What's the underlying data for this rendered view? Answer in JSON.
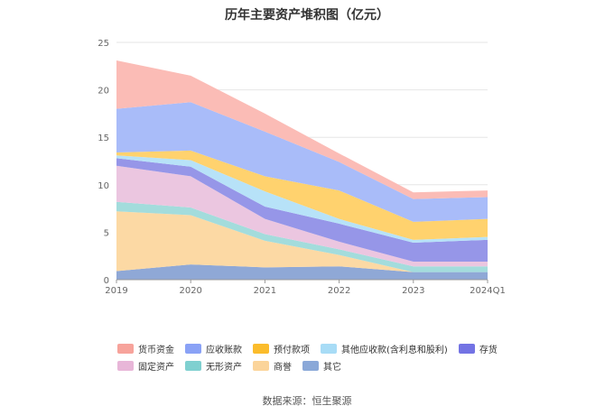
{
  "chart_data": {
    "type": "area",
    "stacked": true,
    "title": "历年主要资产堆积图（亿元）",
    "xlabel": "",
    "ylabel": "",
    "categories": [
      "2019",
      "2020",
      "2021",
      "2022",
      "2023",
      "2024Q1"
    ],
    "ylim": [
      0,
      25
    ],
    "yticks": [
      0,
      5,
      10,
      15,
      20,
      25
    ],
    "grid": true,
    "legend_position": "bottom",
    "series": [
      {
        "name": "其它",
        "color": "#8fa8d6",
        "values": [
          0.9,
          1.6,
          1.3,
          1.4,
          0.8,
          0.8
        ]
      },
      {
        "name": "商誉",
        "color": "#fcd9a4",
        "values": [
          6.3,
          5.2,
          2.8,
          1.2,
          0.0,
          0.0
        ]
      },
      {
        "name": "无形资产",
        "color": "#a3dcdc",
        "values": [
          1.0,
          0.8,
          0.7,
          0.6,
          0.6,
          0.6
        ]
      },
      {
        "name": "固定资产",
        "color": "#ebc6e0",
        "values": [
          3.8,
          3.3,
          1.6,
          0.8,
          0.5,
          0.5
        ]
      },
      {
        "name": "存货",
        "color": "#9696e8",
        "values": [
          0.8,
          1.0,
          1.3,
          1.9,
          2.0,
          2.3
        ]
      },
      {
        "name": "其他应收款(含利息和股利)",
        "color": "#b7e2f8",
        "values": [
          0.3,
          0.7,
          1.6,
          0.5,
          0.3,
          0.3
        ]
      },
      {
        "name": "预付款项",
        "color": "#ffd26e",
        "values": [
          0.3,
          1.0,
          1.6,
          3.0,
          1.9,
          1.9
        ]
      },
      {
        "name": "应收账款",
        "color": "#a9bcf9",
        "values": [
          4.6,
          5.1,
          4.7,
          3.0,
          2.4,
          2.3
        ]
      },
      {
        "name": "货币资金",
        "color": "#fbbcb6",
        "values": [
          5.1,
          2.8,
          1.9,
          0.9,
          0.7,
          0.7
        ]
      }
    ],
    "legend": {
      "rows": [
        [
          {
            "name": "货币资金",
            "color": "#f7a39b"
          },
          {
            "name": "应收账款",
            "color": "#8aa2f6"
          },
          {
            "name": "预付款项",
            "color": "#fbbc2c"
          },
          {
            "name": "其他应收款(含利息和股利)",
            "color": "#a8dcf6"
          },
          {
            "name": "存货",
            "color": "#7373e4"
          }
        ],
        [
          {
            "name": "固定资产",
            "color": "#e8b6d8"
          },
          {
            "name": "无形资产",
            "color": "#7fd0d0"
          },
          {
            "name": "商誉",
            "color": "#fbd49a"
          },
          {
            "name": "其它",
            "color": "#8aa8d8"
          }
        ]
      ]
    },
    "source": "数据来源：恒生聚源"
  }
}
